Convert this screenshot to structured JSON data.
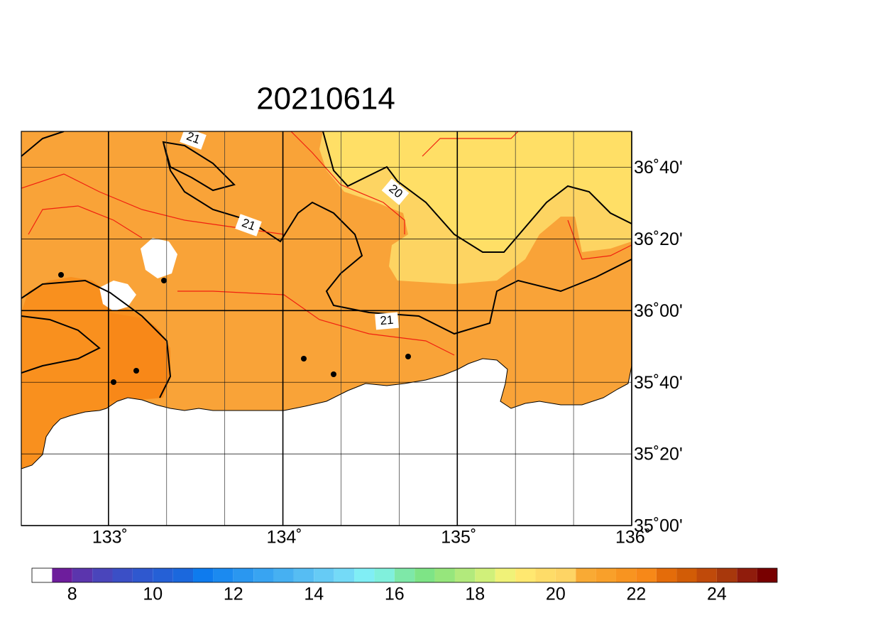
{
  "title": "20210614",
  "map": {
    "lon_range": [
      132.5,
      136
    ],
    "lat_range": [
      35,
      36.8333
    ],
    "lon_ticks": [
      {
        "value": 133,
        "label": "133˚"
      },
      {
        "value": 134,
        "label": "134˚"
      },
      {
        "value": 135,
        "label": "135˚"
      },
      {
        "value": 136,
        "label": "136˚"
      }
    ],
    "lat_ticks": [
      {
        "value": 35,
        "label": "35˚00'"
      },
      {
        "value": 35.3333,
        "label": "35˚20'"
      },
      {
        "value": 35.6667,
        "label": "35˚40'"
      },
      {
        "value": 36,
        "label": "36˚00'"
      },
      {
        "value": 36.3333,
        "label": "36˚20'"
      },
      {
        "value": 36.6667,
        "label": "36˚40'"
      }
    ],
    "contour_labels": [
      "21",
      "20",
      "21",
      "21"
    ]
  },
  "colorbar": {
    "range": [
      7,
      25.5
    ],
    "ticks": [
      8,
      10,
      12,
      14,
      16,
      18,
      20,
      22,
      24
    ],
    "colors": [
      "#ffffff",
      "#6d1d9c",
      "#5b35ad",
      "#4a45bb",
      "#3b4fc6",
      "#2f58cf",
      "#2560d6",
      "#1b68dd",
      "#0e7bee",
      "#1b8af0",
      "#2a97f0",
      "#38a4f2",
      "#46b0f2",
      "#56bdf3",
      "#66cbf5",
      "#74daf7",
      "#80eef5",
      "#80f0dc",
      "#7ee8a8",
      "#7ee486",
      "#96e67c",
      "#b2ea7c",
      "#d0f07a",
      "#f0f278",
      "#ffe870",
      "#fedc68",
      "#fed464",
      "#f9aa34",
      "#f9a02a",
      "#f89420",
      "#f78818",
      "#e46c0a",
      "#d25c06",
      "#c04a0a",
      "#a8380c",
      "#901c0c",
      "#780000"
    ]
  }
}
